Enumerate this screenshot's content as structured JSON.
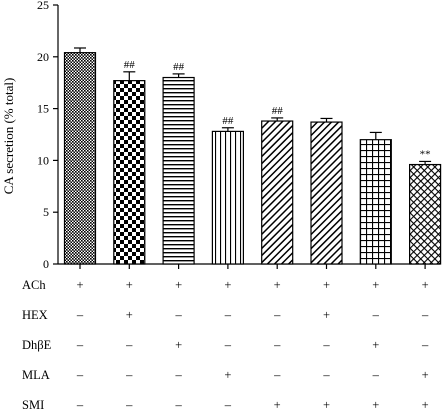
{
  "chart_data": {
    "type": "bar",
    "title": "",
    "ylabel": "CA secretion (% total)",
    "ylim": [
      0,
      25
    ],
    "yticks": [
      0,
      5,
      10,
      15,
      20,
      25
    ],
    "n_groups": 8,
    "values": [
      20.4,
      17.7,
      18.0,
      12.8,
      13.8,
      13.7,
      12.0,
      9.6
    ],
    "errors": [
      0.45,
      0.85,
      0.35,
      0.35,
      0.3,
      0.35,
      0.7,
      0.3
    ],
    "annotations": [
      "",
      "##",
      "##",
      "##",
      "##",
      "",
      "",
      "**"
    ],
    "patterns": [
      "dense-dots",
      "checker",
      "horizontal-lines",
      "vertical-lines",
      "diagonal-lines",
      "diagonal-lines",
      "grid",
      "diagonal-cross"
    ],
    "treatments": [
      {
        "label": "ACh",
        "signs": [
          "+",
          "+",
          "+",
          "+",
          "+",
          "+",
          "+",
          "+"
        ]
      },
      {
        "label": "HEX",
        "signs": [
          "–",
          "+",
          "–",
          "–",
          "–",
          "+",
          "–",
          "–"
        ]
      },
      {
        "label": "DhβE",
        "signs": [
          "–",
          "–",
          "+",
          "–",
          "–",
          "–",
          "+",
          "–"
        ]
      },
      {
        "label": "MLA",
        "signs": [
          "–",
          "–",
          "–",
          "+",
          "–",
          "–",
          "–",
          "+"
        ]
      },
      {
        "label": "SMI",
        "signs": [
          "–",
          "–",
          "–",
          "–",
          "+",
          "+",
          "+",
          "+"
        ]
      }
    ],
    "bar_color": "#000000",
    "background": "#ffffff"
  }
}
